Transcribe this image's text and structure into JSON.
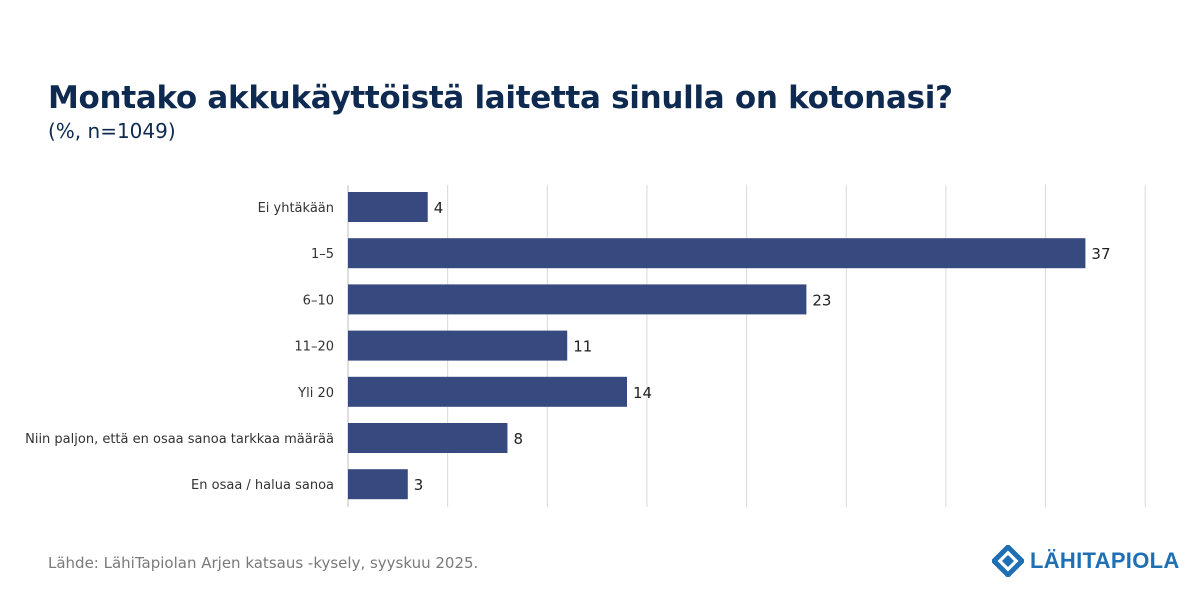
{
  "title": "Montako akkukäyttöistä laitetta sinulla on kotonasi?",
  "subtitle": "(%, n=1049)",
  "source": "Lähde: LähiTapiolan Arjen katsaus -kysely, syyskuu 2025.",
  "logo_text": "LÄHITAPIOLA",
  "colors": {
    "bar": "#364a80",
    "title": "#0e2a50",
    "logo": "#1f6fb5",
    "grid": "#d9d9d9"
  },
  "chart_data": {
    "type": "bar",
    "orientation": "horizontal",
    "title": "Montako akkukäyttöistä laitetta sinulla on kotonasi?",
    "subtitle": "(%, n=1049)",
    "categories": [
      "Ei yhtäkään",
      "1–5",
      "6–10",
      "11–20",
      "Yli 20",
      "Niin paljon, että en osaa sanoa tarkkaa määrää",
      "En osaa / halua sanoa"
    ],
    "values": [
      4,
      37,
      23,
      11,
      14,
      8,
      3
    ],
    "xlim": [
      0,
      40
    ],
    "grid_step": 5,
    "grid": true,
    "xlabel": "",
    "ylabel": ""
  }
}
